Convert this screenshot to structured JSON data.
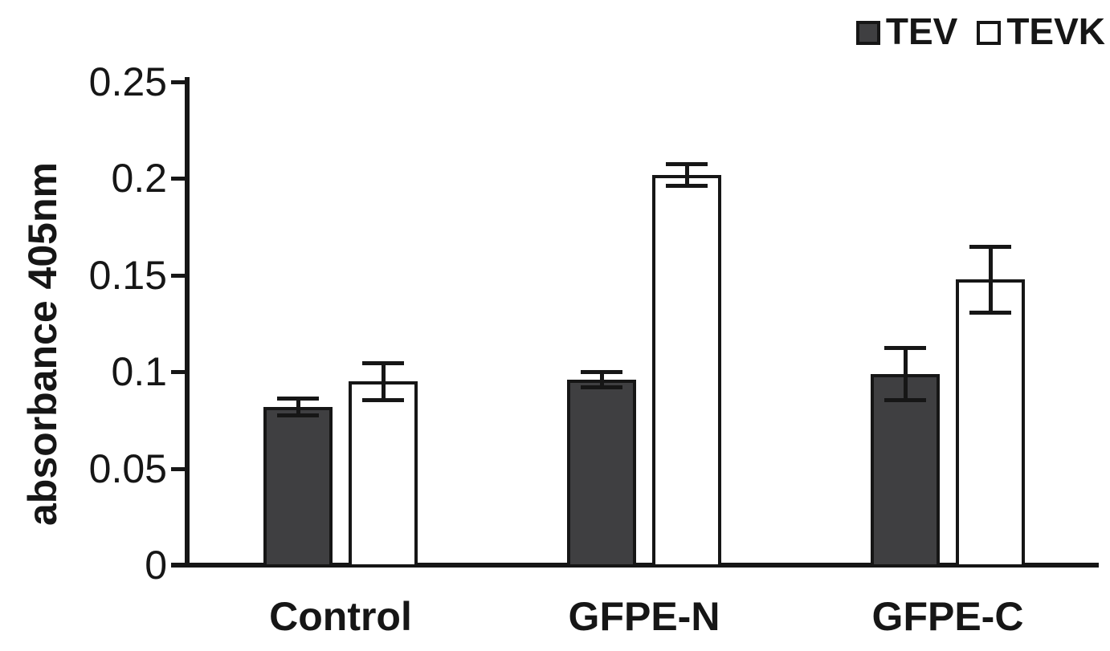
{
  "chart_data": {
    "type": "bar",
    "title": "",
    "ylabel": "absorbance 405nm",
    "xlabel": "",
    "ylim": [
      0,
      0.25
    ],
    "grid": false,
    "legend_position": "top-right",
    "categories": [
      "Control",
      "GFPE-N",
      "GFPE-C"
    ],
    "series": [
      {
        "name": "TEV",
        "fill": "#3F3F41",
        "values": [
          0.082,
          0.096,
          0.099
        ],
        "errors": [
          0.0045,
          0.004,
          0.0135
        ]
      },
      {
        "name": "TEVK",
        "fill": "#FFFFFF",
        "values": [
          0.095,
          0.202,
          0.148
        ],
        "errors": [
          0.0095,
          0.0055,
          0.017
        ]
      }
    ],
    "y_ticks": [
      {
        "value": 0,
        "label": "0"
      },
      {
        "value": 0.05,
        "label": "0.05"
      },
      {
        "value": 0.1,
        "label": "0.1"
      },
      {
        "value": 0.15,
        "label": "0.15"
      },
      {
        "value": 0.2,
        "label": "0.2"
      },
      {
        "value": 0.25,
        "label": "0.25"
      }
    ],
    "colors": {
      "axis": "#161616",
      "text": "#161616",
      "tev_fill": "#3F3F41",
      "tevk_fill": "#FFFFFF",
      "bar_border": "#161616"
    }
  }
}
